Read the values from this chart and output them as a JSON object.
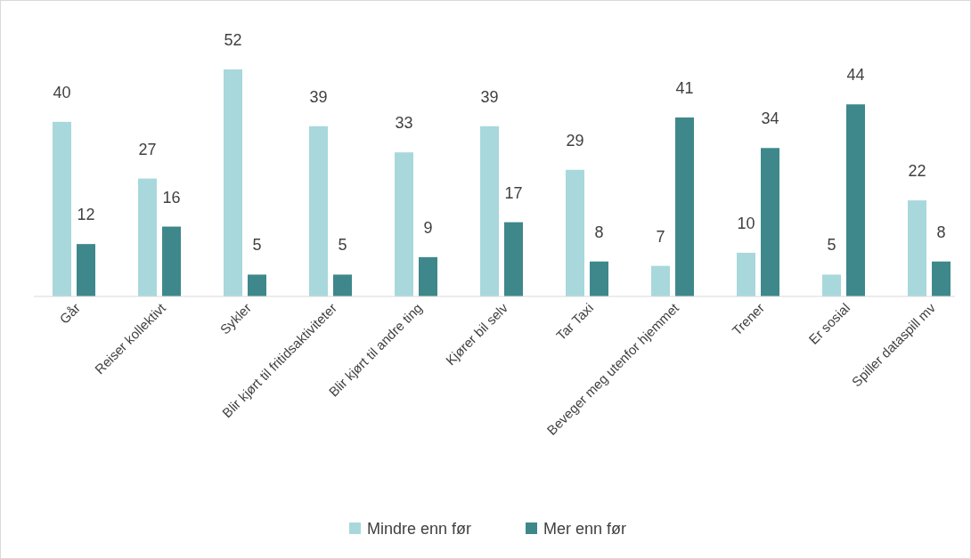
{
  "chart_data": {
    "type": "bar",
    "categories": [
      "Går",
      "Reiser kollektivt",
      "Sykler",
      "Blir kjørt til fritidsaktiviteter",
      "Blir kjørt til andre ting",
      "Kjører bil selv",
      "Tar Taxi",
      "Beveger meg utenfor hjemmet",
      "Trener",
      "Er sosial",
      "Spiller dataspill mv"
    ],
    "series": [
      {
        "name": "Mindre enn før",
        "color": "#a8d8dc",
        "values": [
          40,
          27,
          52,
          39,
          33,
          39,
          29,
          7,
          10,
          5,
          22
        ]
      },
      {
        "name": "Mer enn før",
        "color": "#3e888c",
        "values": [
          12,
          16,
          5,
          5,
          9,
          17,
          8,
          41,
          34,
          44,
          8
        ]
      }
    ],
    "tick_labels": "x",
    "data_labels": true,
    "legend": "bottom"
  }
}
